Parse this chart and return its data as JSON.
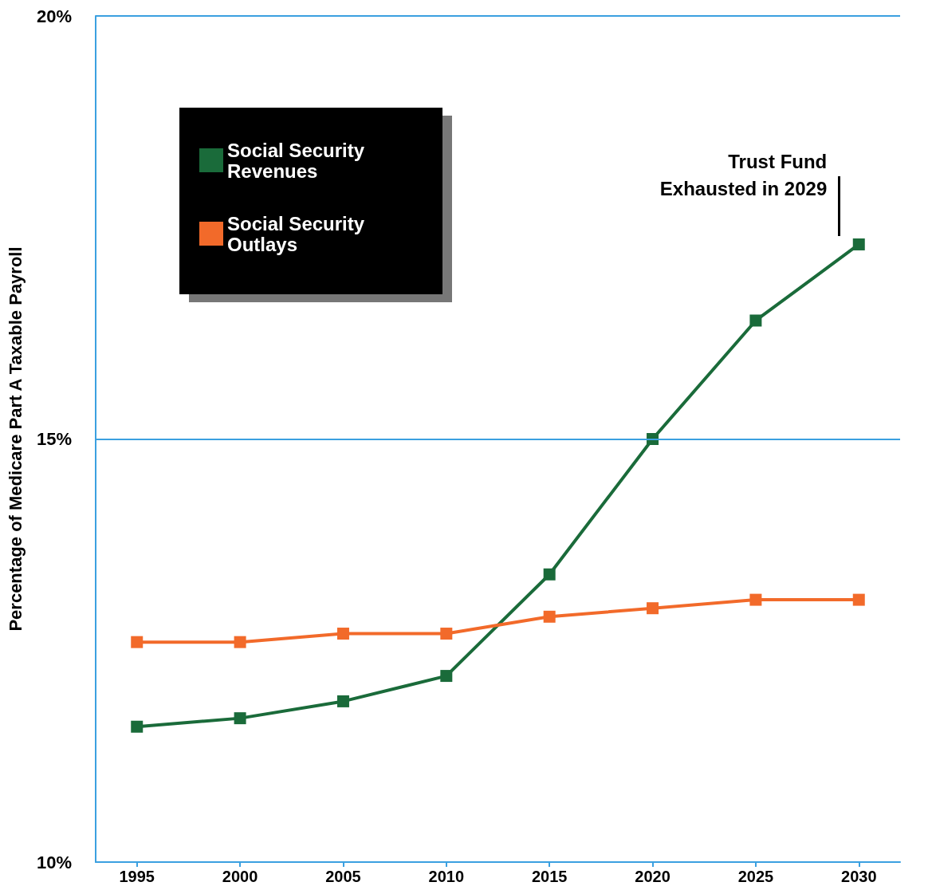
{
  "chart_data": {
    "type": "line",
    "ylabel": "Percentage of Medicare Part A Taxable Payroll",
    "x": [
      1995,
      2000,
      2005,
      2010,
      2015,
      2020,
      2025,
      2030
    ],
    "xlim": [
      1993,
      2032
    ],
    "xticks": [
      1995,
      2000,
      2005,
      2010,
      2015,
      2020,
      2025,
      2030
    ],
    "ylim": [
      10,
      20
    ],
    "yticks": [
      {
        "value": 10,
        "label": "10%"
      },
      {
        "value": 15,
        "label": "15%"
      },
      {
        "value": 20,
        "label": "20%"
      }
    ],
    "series": [
      {
        "name": "Social Security Revenues",
        "color": "#1a6b3a",
        "values": [
          11.6,
          11.7,
          11.9,
          12.2,
          13.4,
          15.0,
          16.4,
          17.3
        ]
      },
      {
        "name": "Social Security Outlays",
        "color": "#f26a2a",
        "values": [
          12.6,
          12.6,
          12.7,
          12.7,
          12.9,
          13.0,
          13.1,
          13.1
        ]
      }
    ],
    "annotations": [
      "Trust Fund Exhausted in 2029"
    ],
    "ref_lines": [
      {
        "axis": "y",
        "value": 15,
        "color": "#3ba0e0"
      },
      {
        "axis": "y",
        "value": 20,
        "color": "#3ba0e0"
      }
    ],
    "legend": "top left",
    "marker": "square",
    "line_style": "solid"
  }
}
